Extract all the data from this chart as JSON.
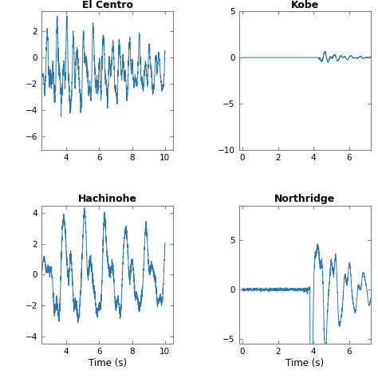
{
  "title_el_centro": "El Centro",
  "title_kobe": "Kobe",
  "title_hachinohe": "Hachinohe",
  "title_northridge": "Northridge",
  "xlabel": "Time (s)",
  "line_color": "#2777b4",
  "line_width": 0.7,
  "el_centro": {
    "xlim": [
      2.5,
      10.5
    ],
    "xticks": [
      4,
      6,
      8,
      10
    ],
    "ylim": [
      -7,
      3.5
    ]
  },
  "kobe": {
    "xlim": [
      -0.2,
      7.2
    ],
    "ylim": [
      -10,
      5
    ],
    "yticks": [
      -10,
      -5,
      0,
      5
    ],
    "xticks": [
      0,
      2,
      4,
      6
    ]
  },
  "hachinohe": {
    "xlim": [
      2.5,
      10.5
    ],
    "xticks": [
      4,
      6,
      8,
      10
    ],
    "ylim": [
      -4.5,
      4.5
    ]
  },
  "northridge": {
    "xlim": [
      -0.2,
      7.2
    ],
    "xticks": [
      0,
      2,
      4,
      6
    ],
    "ylim": [
      -5.5,
      8.5
    ],
    "yticks": [
      -5,
      0,
      5
    ]
  },
  "background_color": "#ffffff",
  "dt": 0.005,
  "duration": 10.0
}
